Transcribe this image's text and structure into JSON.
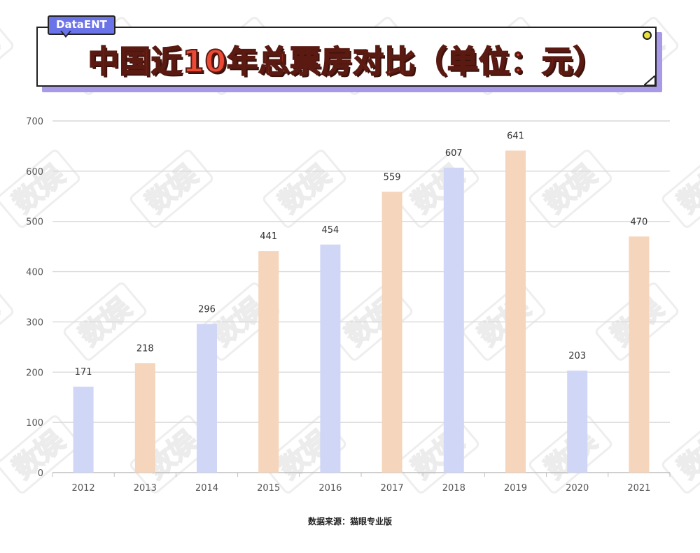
{
  "badge": {
    "label": "DataENT"
  },
  "title": {
    "text": "中国近10年总票房对比（单位：元）"
  },
  "source": {
    "text": "数据来源：猫眼专业版"
  },
  "watermark": {
    "text": "数娱"
  },
  "chart_data": {
    "type": "bar",
    "title": "中国近10年总票房对比（单位：元）",
    "categories": [
      "2012",
      "2013",
      "2014",
      "2015",
      "2016",
      "2017",
      "2018",
      "2019",
      "2020",
      "2021"
    ],
    "values": [
      171,
      218,
      296,
      441,
      454,
      559,
      607,
      641,
      203,
      470
    ],
    "data_labels": [
      "171",
      "218",
      "296",
      "441",
      "454",
      "559",
      "607",
      "641",
      "203",
      "470"
    ],
    "xlabel": "",
    "ylabel": "",
    "ylim": [
      0,
      700
    ],
    "yticks": [
      "0",
      "100",
      "200",
      "300",
      "400",
      "500",
      "600",
      "700"
    ],
    "grid": true,
    "legend": "none",
    "colors": {
      "odd": "#d0d6f5",
      "even": "#f5d5bb",
      "grid": "#d9d9d9",
      "axis": "#bfbfbf",
      "text": "#555555"
    }
  }
}
